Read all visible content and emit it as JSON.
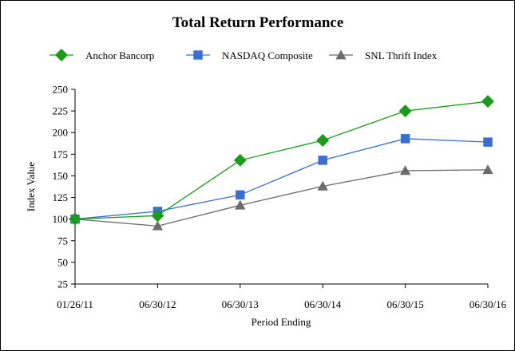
{
  "chart_data": {
    "type": "line",
    "title": "Total Return Performance",
    "xlabel": "Period Ending",
    "ylabel": "Index Value",
    "categories": [
      "01/26/11",
      "06/30/12",
      "06/30/13",
      "06/30/14",
      "06/30/15",
      "06/30/16"
    ],
    "ylim": [
      25,
      250
    ],
    "yticks": [
      25,
      50,
      75,
      100,
      125,
      150,
      175,
      200,
      225,
      250
    ],
    "grid": false,
    "legend_position": "top",
    "series": [
      {
        "name": "Anchor Bancorp",
        "marker": "diamond",
        "color": "#1a9c1a",
        "values": [
          100,
          104,
          168,
          191,
          225,
          236
        ]
      },
      {
        "name": "NASDAQ Composite",
        "marker": "square",
        "color": "#3a6fcf",
        "values": [
          100,
          109,
          128,
          168,
          193,
          189
        ]
      },
      {
        "name": "SNL Thrift Index",
        "marker": "triangle",
        "color": "#6b6b6b",
        "values": [
          100,
          92,
          116,
          138,
          156,
          157
        ]
      }
    ]
  }
}
